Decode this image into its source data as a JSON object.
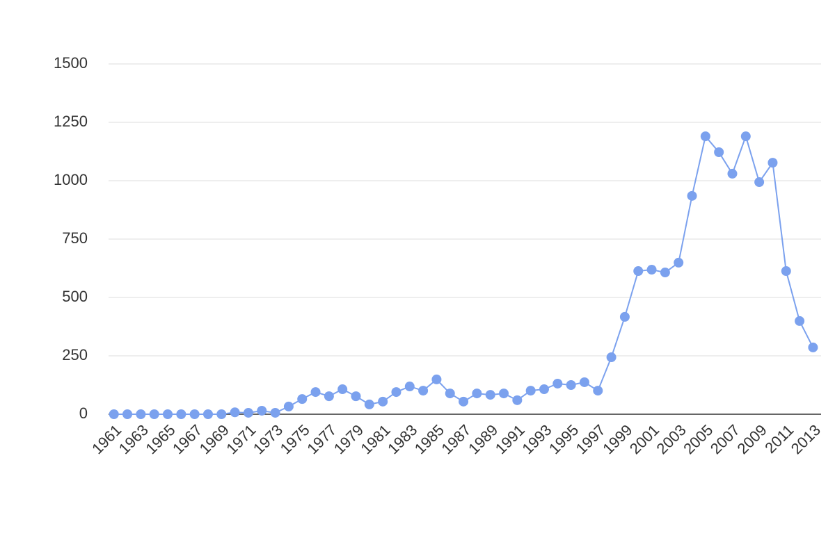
{
  "chart_data": {
    "type": "line",
    "x": [
      1961,
      1962,
      1963,
      1964,
      1965,
      1966,
      1967,
      1968,
      1969,
      1970,
      1971,
      1972,
      1973,
      1974,
      1975,
      1976,
      1977,
      1978,
      1979,
      1980,
      1981,
      1982,
      1983,
      1984,
      1985,
      1986,
      1987,
      1988,
      1989,
      1990,
      1991,
      1992,
      1993,
      1994,
      1995,
      1996,
      1997,
      1998,
      1999,
      2000,
      2001,
      2002,
      2003,
      2004,
      2005,
      2006,
      2007,
      2008,
      2009,
      2010,
      2011,
      2012,
      2013
    ],
    "values": [
      0,
      0,
      0,
      0,
      0,
      0,
      0,
      0,
      0,
      8,
      6,
      15,
      6,
      33,
      65,
      95,
      77,
      107,
      77,
      42,
      54,
      95,
      119,
      101,
      149,
      89,
      54,
      89,
      83,
      89,
      60,
      101,
      107,
      131,
      125,
      137,
      101,
      244,
      417,
      613,
      619,
      607,
      649,
      935,
      1190,
      1122,
      1030,
      1190,
      994,
      1077,
      613,
      399,
      286
    ],
    "color": "#7ba1ee",
    "xlim": [
      1960.6,
      2013.6
    ],
    "xticks": [
      1961,
      1963,
      1965,
      1967,
      1969,
      1971,
      1973,
      1975,
      1977,
      1979,
      1981,
      1983,
      1985,
      1987,
      1989,
      1991,
      1993,
      1995,
      1997,
      1999,
      2001,
      2003,
      2005,
      2007,
      2009,
      2011,
      2013
    ],
    "ylim": [
      0,
      1500
    ],
    "yticks": [
      0,
      250,
      500,
      750,
      1000,
      1250,
      1500
    ],
    "grid": true
  }
}
